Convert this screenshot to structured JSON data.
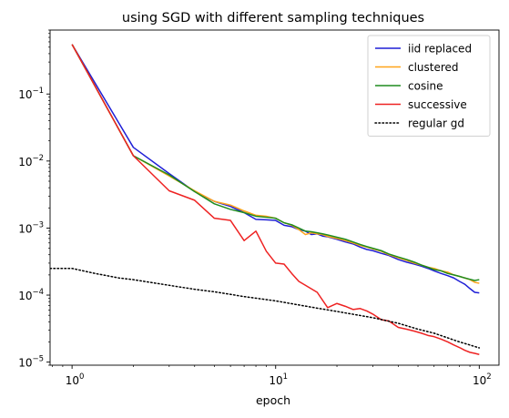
{
  "chart_data": {
    "type": "line",
    "title": "using SGD with different sampling techniques",
    "xlabel": "epoch",
    "ylabel": "",
    "xscale": "log",
    "yscale": "log",
    "xlim": [
      0.78,
      125
    ],
    "ylim": [
      9e-06,
      0.9
    ],
    "x_ticks": [
      {
        "value": 1,
        "base": "10",
        "exp": "0"
      },
      {
        "value": 10,
        "base": "10",
        "exp": "1"
      },
      {
        "value": 100,
        "base": "10",
        "exp": "2"
      }
    ],
    "y_ticks": [
      {
        "value": 0.1,
        "base": "10",
        "exp": "−1"
      },
      {
        "value": 0.01,
        "base": "10",
        "exp": "−2"
      },
      {
        "value": 0.001,
        "base": "10",
        "exp": "−3"
      },
      {
        "value": 0.0001,
        "base": "10",
        "exp": "−4"
      },
      {
        "value": 1e-05,
        "base": "10",
        "exp": "−5"
      }
    ],
    "legend_position": "top-right",
    "series": [
      {
        "name": "iid replaced",
        "color": "#1f1fd6",
        "dash": "solid",
        "points": [
          [
            1,
            0.55
          ],
          [
            2,
            0.016
          ],
          [
            3,
            0.0065
          ],
          [
            4,
            0.0035
          ],
          [
            5,
            0.0025
          ],
          [
            6,
            0.0021
          ],
          [
            7,
            0.0017
          ],
          [
            8,
            0.00135
          ],
          [
            9,
            0.00133
          ],
          [
            10,
            0.0013
          ],
          [
            11,
            0.0011
          ],
          [
            12,
            0.00105
          ],
          [
            13,
            0.00095
          ],
          [
            14,
            0.0009
          ],
          [
            15,
            0.0008
          ],
          [
            16,
            0.00082
          ],
          [
            17,
            0.00076
          ],
          [
            18,
            0.00074
          ],
          [
            20,
            0.00068
          ],
          [
            22,
            0.00062
          ],
          [
            24,
            0.00058
          ],
          [
            26,
            0.00052
          ],
          [
            28,
            0.00048
          ],
          [
            30,
            0.00046
          ],
          [
            33,
            0.00042
          ],
          [
            36,
            0.00039
          ],
          [
            40,
            0.00034
          ],
          [
            44,
            0.00031
          ],
          [
            48,
            0.00029
          ],
          [
            52,
            0.00027
          ],
          [
            56,
            0.00025
          ],
          [
            60,
            0.00023
          ],
          [
            65,
            0.00021
          ],
          [
            70,
            0.000195
          ],
          [
            75,
            0.00018
          ],
          [
            80,
            0.00016
          ],
          [
            85,
            0.000145
          ],
          [
            90,
            0.000125
          ],
          [
            95,
            0.00011
          ],
          [
            100,
            0.000108
          ]
        ]
      },
      {
        "name": "clustered",
        "color": "#ffa319",
        "dash": "solid",
        "points": [
          [
            1,
            0.55
          ],
          [
            2,
            0.012
          ],
          [
            3,
            0.006
          ],
          [
            4,
            0.0036
          ],
          [
            5,
            0.0025
          ],
          [
            6,
            0.0022
          ],
          [
            7,
            0.0018
          ],
          [
            8,
            0.00155
          ],
          [
            9,
            0.0015
          ],
          [
            10,
            0.0014
          ],
          [
            11,
            0.0012
          ],
          [
            12,
            0.0011
          ],
          [
            13,
            0.00095
          ],
          [
            14,
            0.0008
          ],
          [
            15,
            0.00085
          ],
          [
            16,
            0.00082
          ],
          [
            17,
            0.0008
          ],
          [
            18,
            0.00075
          ],
          [
            20,
            0.0007
          ],
          [
            22,
            0.00065
          ],
          [
            24,
            0.0006
          ],
          [
            26,
            0.00055
          ],
          [
            28,
            0.00052
          ],
          [
            30,
            0.00049
          ],
          [
            33,
            0.00045
          ],
          [
            36,
            0.0004
          ],
          [
            40,
            0.00036
          ],
          [
            44,
            0.00033
          ],
          [
            48,
            0.0003
          ],
          [
            52,
            0.00028
          ],
          [
            56,
            0.00026
          ],
          [
            60,
            0.00025
          ],
          [
            65,
            0.00023
          ],
          [
            70,
            0.00022
          ],
          [
            75,
            0.0002
          ],
          [
            80,
            0.00019
          ],
          [
            85,
            0.00018
          ],
          [
            90,
            0.00017
          ],
          [
            95,
            0.000155
          ],
          [
            100,
            0.00015
          ]
        ]
      },
      {
        "name": "cosine",
        "color": "#1f8c1f",
        "dash": "solid",
        "points": [
          [
            1,
            0.55
          ],
          [
            2,
            0.012
          ],
          [
            3,
            0.0062
          ],
          [
            4,
            0.0035
          ],
          [
            5,
            0.0023
          ],
          [
            6,
            0.0019
          ],
          [
            7,
            0.0017
          ],
          [
            8,
            0.0015
          ],
          [
            9,
            0.00145
          ],
          [
            10,
            0.0014
          ],
          [
            11,
            0.0012
          ],
          [
            12,
            0.00112
          ],
          [
            13,
            0.001
          ],
          [
            14,
            0.0009
          ],
          [
            15,
            0.00088
          ],
          [
            16,
            0.00085
          ],
          [
            17,
            0.00082
          ],
          [
            18,
            0.00079
          ],
          [
            20,
            0.00073
          ],
          [
            22,
            0.00068
          ],
          [
            24,
            0.00062
          ],
          [
            26,
            0.00057
          ],
          [
            28,
            0.00053
          ],
          [
            30,
            0.0005
          ],
          [
            33,
            0.00046
          ],
          [
            36,
            0.00041
          ],
          [
            40,
            0.00037
          ],
          [
            44,
            0.00034
          ],
          [
            48,
            0.00031
          ],
          [
            52,
            0.00028
          ],
          [
            56,
            0.00026
          ],
          [
            60,
            0.00024
          ],
          [
            65,
            0.00023
          ],
          [
            70,
            0.00021
          ],
          [
            75,
            0.0002
          ],
          [
            80,
            0.00019
          ],
          [
            85,
            0.00018
          ],
          [
            90,
            0.000172
          ],
          [
            95,
            0.000165
          ],
          [
            100,
            0.00017
          ]
        ]
      },
      {
        "name": "successive",
        "color": "#ee2222",
        "dash": "solid",
        "points": [
          [
            1,
            0.55
          ],
          [
            2,
            0.012
          ],
          [
            3,
            0.0036
          ],
          [
            4,
            0.0026
          ],
          [
            5,
            0.0014
          ],
          [
            6,
            0.0013
          ],
          [
            7,
            0.00065
          ],
          [
            8,
            0.0009
          ],
          [
            9,
            0.00045
          ],
          [
            10,
            0.0003
          ],
          [
            11,
            0.00029
          ],
          [
            12,
            0.00021
          ],
          [
            13,
            0.00016
          ],
          [
            14,
            0.00014
          ],
          [
            16,
            0.00011
          ],
          [
            18,
            6.5e-05
          ],
          [
            20,
            7.5e-05
          ],
          [
            22,
            6.8e-05
          ],
          [
            24,
            6.1e-05
          ],
          [
            26,
            6.3e-05
          ],
          [
            28,
            5.8e-05
          ],
          [
            30,
            5.2e-05
          ],
          [
            33,
            4.3e-05
          ],
          [
            36,
            4.1e-05
          ],
          [
            40,
            3.3e-05
          ],
          [
            44,
            3.1e-05
          ],
          [
            48,
            2.9e-05
          ],
          [
            52,
            2.7e-05
          ],
          [
            56,
            2.5e-05
          ],
          [
            60,
            2.4e-05
          ],
          [
            65,
            2.2e-05
          ],
          [
            70,
            2e-05
          ],
          [
            75,
            1.8e-05
          ],
          [
            80,
            1.65e-05
          ],
          [
            85,
            1.5e-05
          ],
          [
            90,
            1.4e-05
          ],
          [
            95,
            1.35e-05
          ],
          [
            100,
            1.3e-05
          ]
        ]
      },
      {
        "name": "regular gd",
        "color": "#000000",
        "dash": "dotted",
        "points": [
          [
            0.78,
            0.00025
          ],
          [
            1,
            0.00025
          ],
          [
            1.3,
            0.00021
          ],
          [
            1.7,
            0.00018
          ],
          [
            2,
            0.00017
          ],
          [
            3,
            0.00014
          ],
          [
            4,
            0.000122
          ],
          [
            5,
            0.000112
          ],
          [
            7,
            9.5e-05
          ],
          [
            10,
            8.2e-05
          ],
          [
            15,
            6.6e-05
          ],
          [
            20,
            5.7e-05
          ],
          [
            30,
            4.6e-05
          ],
          [
            40,
            3.8e-05
          ],
          [
            50,
            3.1e-05
          ],
          [
            60,
            2.7e-05
          ],
          [
            70,
            2.3e-05
          ],
          [
            80,
            2e-05
          ],
          [
            90,
            1.8e-05
          ],
          [
            100,
            1.63e-05
          ]
        ]
      }
    ]
  }
}
